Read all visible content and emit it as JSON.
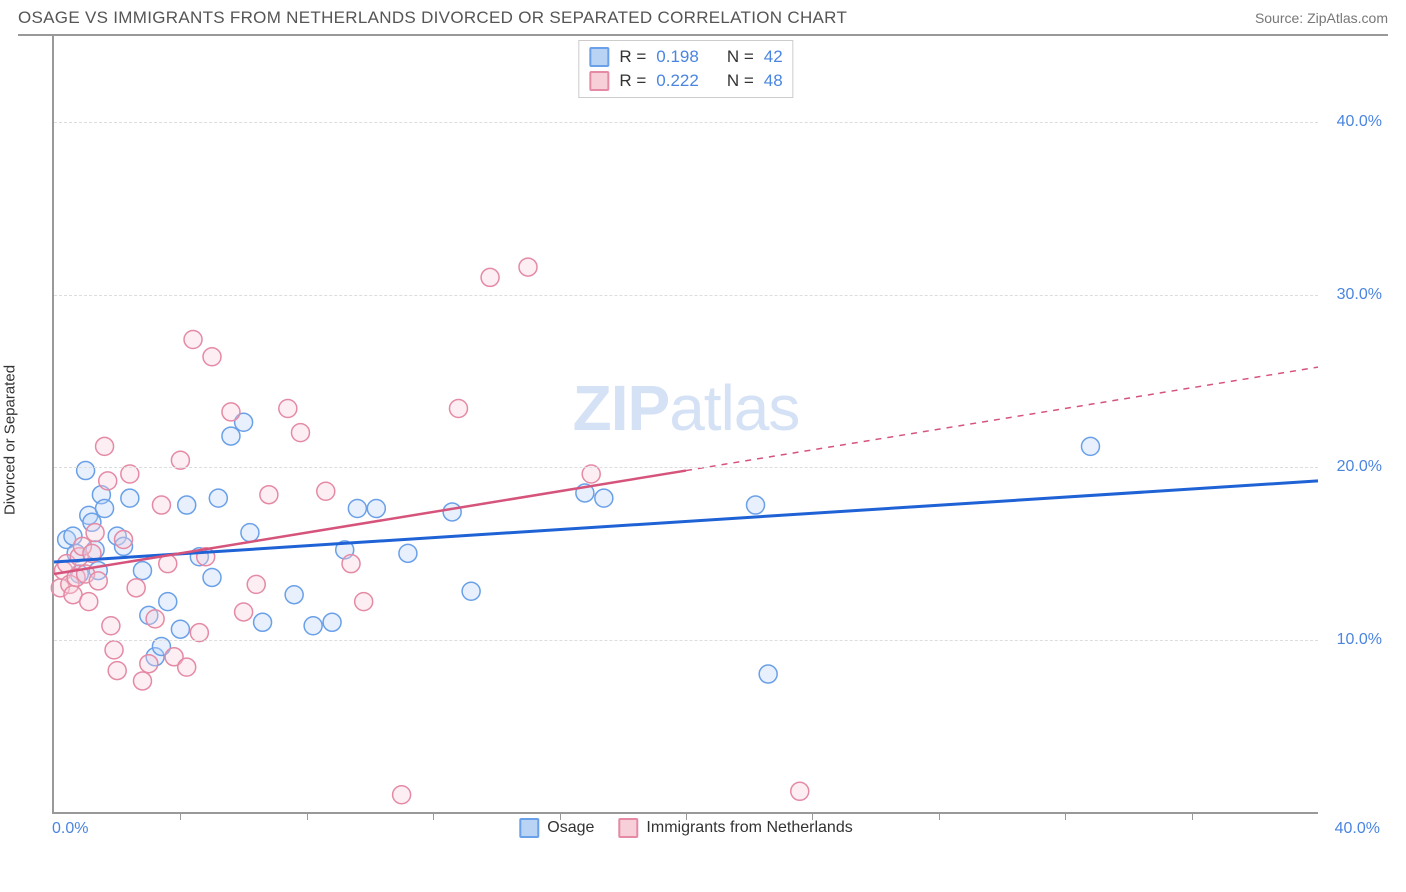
{
  "title": "OSAGE VS IMMIGRANTS FROM NETHERLANDS DIVORCED OR SEPARATED CORRELATION CHART",
  "source": "Source: ZipAtlas.com",
  "watermark": {
    "bold": "ZIP",
    "light": "atlas"
  },
  "ylabel": "Divorced or Separated",
  "chart": {
    "type": "scatter",
    "x_domain": [
      0,
      40
    ],
    "y_domain": [
      0,
      45
    ],
    "x_ticks_label": {
      "min": "0.0%",
      "max": "40.0%"
    },
    "x_tick_positions_pct": [
      10,
      20,
      30,
      40,
      50,
      60,
      70,
      80,
      90
    ],
    "y_ticks": [
      {
        "value": 10,
        "label": "10.0%"
      },
      {
        "value": 20,
        "label": "20.0%"
      },
      {
        "value": 30,
        "label": "30.0%"
      },
      {
        "value": 40,
        "label": "40.0%"
      }
    ],
    "grid_color": "#dddddd",
    "background_color": "#ffffff",
    "axis_color": "#999999",
    "tick_label_color": "#4a85e0",
    "marker_radius": 9,
    "marker_stroke_width": 1.5,
    "marker_fill_opacity": 0.35,
    "series": [
      {
        "name": "Osage",
        "color_stroke": "#6aa0e8",
        "color_fill": "#b9d3f5",
        "trend_color": "#1f62d6",
        "trend_width": 3,
        "trend": {
          "x1": 0,
          "y1": 14.5,
          "x2": 40,
          "y2": 19.2
        },
        "trend_solid_until_x": 40,
        "points": [
          [
            0.4,
            15.8
          ],
          [
            0.6,
            16.0
          ],
          [
            0.7,
            15.0
          ],
          [
            0.8,
            13.8
          ],
          [
            1.0,
            19.8
          ],
          [
            1.1,
            17.2
          ],
          [
            1.2,
            16.8
          ],
          [
            1.3,
            15.2
          ],
          [
            1.4,
            14.0
          ],
          [
            1.5,
            18.4
          ],
          [
            1.6,
            17.6
          ],
          [
            2.0,
            16.0
          ],
          [
            2.2,
            15.4
          ],
          [
            2.4,
            18.2
          ],
          [
            2.8,
            14.0
          ],
          [
            3.0,
            11.4
          ],
          [
            3.2,
            9.0
          ],
          [
            3.4,
            9.6
          ],
          [
            3.6,
            12.2
          ],
          [
            4.0,
            10.6
          ],
          [
            4.2,
            17.8
          ],
          [
            4.6,
            14.8
          ],
          [
            5.0,
            13.6
          ],
          [
            5.2,
            18.2
          ],
          [
            5.6,
            21.8
          ],
          [
            6.0,
            22.6
          ],
          [
            6.2,
            16.2
          ],
          [
            6.6,
            11.0
          ],
          [
            7.6,
            12.6
          ],
          [
            8.2,
            10.8
          ],
          [
            8.8,
            11.0
          ],
          [
            9.2,
            15.2
          ],
          [
            9.6,
            17.6
          ],
          [
            10.2,
            17.6
          ],
          [
            11.2,
            15.0
          ],
          [
            12.6,
            17.4
          ],
          [
            13.2,
            12.8
          ],
          [
            16.8,
            18.5
          ],
          [
            17.4,
            18.2
          ],
          [
            22.2,
            17.8
          ],
          [
            22.6,
            8.0
          ],
          [
            32.8,
            21.2
          ]
        ]
      },
      {
        "name": "Immigrants from Netherlands",
        "color_stroke": "#e58aa5",
        "color_fill": "#f6cfd9",
        "trend_color": "#d6547c",
        "trend_width": 2.5,
        "trend": {
          "x1": 0,
          "y1": 13.8,
          "x2": 40,
          "y2": 25.8
        },
        "trend_solid_until_x": 20,
        "points": [
          [
            0.2,
            13.0
          ],
          [
            0.3,
            14.0
          ],
          [
            0.4,
            14.4
          ],
          [
            0.5,
            13.2
          ],
          [
            0.6,
            12.6
          ],
          [
            0.7,
            13.6
          ],
          [
            0.8,
            14.8
          ],
          [
            0.9,
            15.4
          ],
          [
            1.0,
            13.8
          ],
          [
            1.1,
            12.2
          ],
          [
            1.2,
            15.0
          ],
          [
            1.3,
            16.2
          ],
          [
            1.4,
            13.4
          ],
          [
            1.6,
            21.2
          ],
          [
            1.7,
            19.2
          ],
          [
            1.8,
            10.8
          ],
          [
            1.9,
            9.4
          ],
          [
            2.0,
            8.2
          ],
          [
            2.2,
            15.8
          ],
          [
            2.4,
            19.6
          ],
          [
            2.6,
            13.0
          ],
          [
            2.8,
            7.6
          ],
          [
            3.0,
            8.6
          ],
          [
            3.2,
            11.2
          ],
          [
            3.4,
            17.8
          ],
          [
            3.6,
            14.4
          ],
          [
            3.8,
            9.0
          ],
          [
            4.0,
            20.4
          ],
          [
            4.2,
            8.4
          ],
          [
            4.4,
            27.4
          ],
          [
            4.6,
            10.4
          ],
          [
            4.8,
            14.8
          ],
          [
            5.0,
            26.4
          ],
          [
            5.6,
            23.2
          ],
          [
            6.0,
            11.6
          ],
          [
            6.4,
            13.2
          ],
          [
            6.8,
            18.4
          ],
          [
            7.4,
            23.4
          ],
          [
            7.8,
            22.0
          ],
          [
            8.6,
            18.6
          ],
          [
            9.4,
            14.4
          ],
          [
            9.8,
            12.2
          ],
          [
            11.0,
            1.0
          ],
          [
            12.8,
            23.4
          ],
          [
            13.8,
            31.0
          ],
          [
            15.0,
            31.6
          ],
          [
            17.0,
            19.6
          ],
          [
            23.6,
            1.2
          ]
        ]
      }
    ],
    "legend_top": [
      {
        "swatch_stroke": "#6aa0e8",
        "swatch_fill": "#b9d3f5",
        "r_label": "R =",
        "r_value": "0.198",
        "n_label": "N =",
        "n_value": "42"
      },
      {
        "swatch_stroke": "#e58aa5",
        "swatch_fill": "#f6cfd9",
        "r_label": "R =",
        "r_value": "0.222",
        "n_label": "N =",
        "n_value": "48"
      }
    ],
    "legend_bottom": [
      {
        "swatch_stroke": "#6aa0e8",
        "swatch_fill": "#b9d3f5",
        "label": "Osage"
      },
      {
        "swatch_stroke": "#e58aa5",
        "swatch_fill": "#f6cfd9",
        "label": "Immigrants from Netherlands"
      }
    ]
  }
}
